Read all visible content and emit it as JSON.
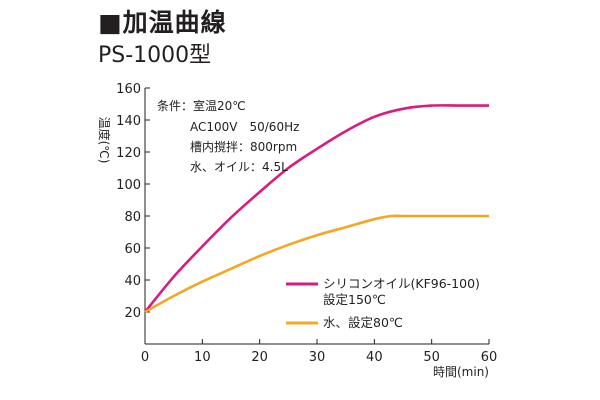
{
  "header": {
    "title": "■加温曲線",
    "subtitle": "PS-1000型"
  },
  "conditions": [
    "条件：室温20℃",
    "AC100V　50/60Hz",
    "槽内撹拌：800rpm",
    "水、オイル：4.5L"
  ],
  "legend_items": [
    {
      "line1": "シリコンオイル(KF96-100)",
      "line2": "設定150℃"
    },
    {
      "line1": "水、設定80℃"
    }
  ],
  "chart_data": {
    "type": "line",
    "xlabel": "時間(min)",
    "ylabel": "温度(℃)",
    "xlim": [
      0,
      60
    ],
    "ylim": [
      0,
      160
    ],
    "x_ticks": [
      0,
      10,
      20,
      30,
      40,
      50,
      60
    ],
    "y_ticks": [
      20,
      40,
      60,
      80,
      100,
      120,
      140,
      160
    ],
    "grid": false,
    "legend_position": "bottom-right",
    "series": [
      {
        "name": "シリコンオイル(KF96-100) 設定150℃",
        "color": "#d81b7f",
        "x": [
          0,
          5,
          10,
          15,
          20,
          25,
          30,
          35,
          40,
          45,
          50,
          55,
          60
        ],
        "y": [
          20,
          42,
          61,
          79,
          95,
          110,
          122,
          133,
          142,
          147,
          149,
          149,
          149
        ]
      },
      {
        "name": "水、設定80℃",
        "color": "#f5a623",
        "x": [
          0,
          5,
          10,
          15,
          20,
          25,
          30,
          35,
          40,
          43,
          45,
          50,
          55,
          60
        ],
        "y": [
          20,
          30,
          39,
          47,
          55,
          62,
          68,
          73,
          78,
          80,
          80,
          80,
          80,
          80
        ]
      }
    ]
  }
}
